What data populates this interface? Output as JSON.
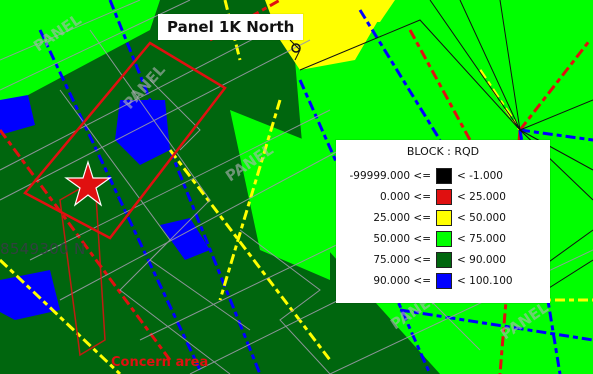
{
  "map_title": "Panel 1K North",
  "coordinate_label": "8549300 N",
  "area_label": "Concern area",
  "legend": {
    "title": "BLOCK : RQD",
    "rows": [
      {
        "min": "-99999.000 <=",
        "max": "< -1.000",
        "color": "#000000"
      },
      {
        "min": "0.000 <=",
        "max": "< 25.000",
        "color": "#e01010"
      },
      {
        "min": "25.000 <=",
        "max": "< 50.000",
        "color": "#ffff00"
      },
      {
        "min": "50.000 <=",
        "max": "< 75.000",
        "color": "#00ff00"
      },
      {
        "min": "75.000 <=",
        "max": "< 90.000",
        "color": "#00660e"
      },
      {
        "min": "90.000 <=",
        "max": "< 100.100",
        "color": "#0000ff"
      }
    ]
  },
  "panel_labels": [
    "PANEL",
    "PANEL",
    "PANEL",
    "PANEL",
    "PANEL"
  ],
  "colors": {
    "dark_green": "#00660e",
    "bright_green": "#00ff00",
    "yellow": "#ffff00",
    "blue": "#0000ff",
    "red": "#e01010",
    "black": "#000000"
  }
}
